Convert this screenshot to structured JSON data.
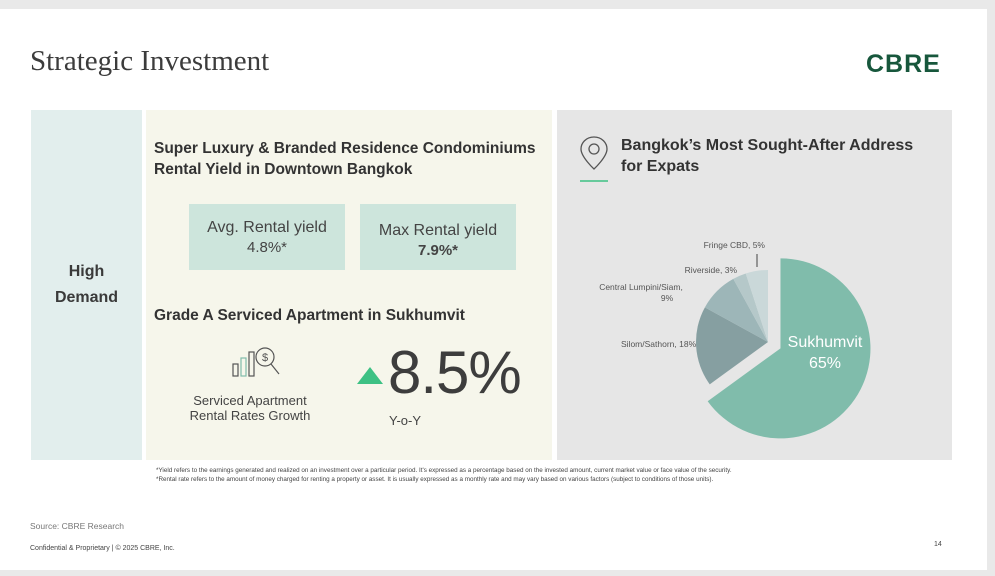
{
  "title": "Strategic Investment",
  "logo": "CBRE",
  "left_label": [
    "High",
    "Demand"
  ],
  "mid": {
    "heading1": [
      "Super Luxury & Branded Residence Condominiums",
      "Rental Yield in Downtown Bangkok"
    ],
    "avg": {
      "label": "Avg. Rental yield",
      "value": "4.8%*"
    },
    "max": {
      "label": "Max Rental yield",
      "value": "7.9%*"
    },
    "heading2": "Grade A Serviced Apartment in Sukhumvit",
    "growth_label": [
      "Serviced Apartment",
      "Rental Rates Growth"
    ],
    "growth_value": "8.5%",
    "growth_period": "Y-o-Y"
  },
  "right": {
    "heading": [
      "Bangkok’s Most Sought-After Address",
      "for Expats"
    ],
    "chart_data": {
      "type": "pie",
      "categories": [
        "Sukhumvit",
        "Silom/Sathorn",
        "Central Lumpini/Siam",
        "Riverside",
        "Fringe CBD"
      ],
      "values": [
        65,
        18,
        9,
        3,
        5
      ],
      "colors": [
        "#80bcab",
        "#869fa1",
        "#9db6b8",
        "#b5c8c9",
        "#cad8d9"
      ],
      "labels": [
        "Sukhumvit 65%",
        "Silom/Sathorn, 18%",
        "Central Lumpini/Siam, 9%",
        "Riverside, 3%",
        "Fringe CBD, 5%"
      ]
    }
  },
  "footnotes": [
    "*Yield refers to the earnings generated and realized on an investment over a particular period. It's expressed as a percentage based on the invested amount, current market value or face value of the security.",
    "*Rental rate refers to the amount of money charged for renting a property or asset. It is usually expressed as a monthly rate and may vary based on various factors (subject to conditions of those units)."
  ],
  "source": "Source: CBRE Research",
  "confidential": "Confidential & Proprietary  |  © 2025 CBRE, Inc.",
  "page_number": "14"
}
